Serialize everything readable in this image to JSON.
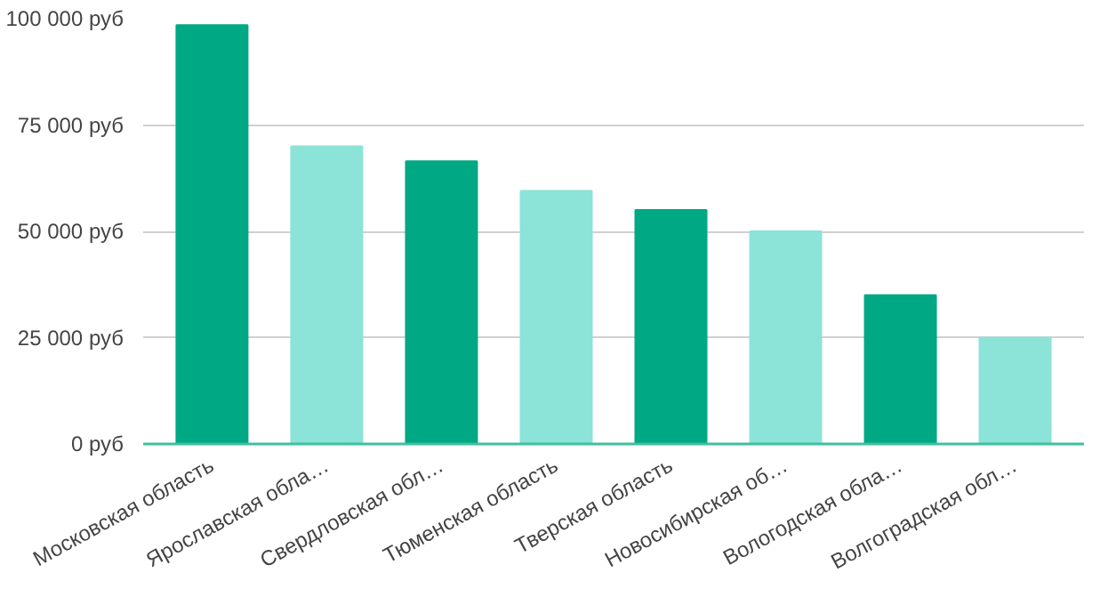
{
  "chart_data": {
    "type": "bar",
    "categories": [
      "Московская область",
      "Ярославская обла…",
      "Свердловская обл…",
      "Тюменская область",
      "Тверская область",
      "Новосибирская об…",
      "Вологодская обла…",
      "Волгоградская обл…"
    ],
    "values": [
      98500,
      70000,
      66500,
      59500,
      55000,
      50000,
      35000,
      25000
    ],
    "colors": [
      "#00a884",
      "#8ce3d8",
      "#00a884",
      "#8ce3d8",
      "#00a884",
      "#8ce3d8",
      "#00a884",
      "#8ce3d8"
    ],
    "ylim": [
      0,
      100000
    ],
    "yticks": [
      {
        "value": 0,
        "label": "0 руб"
      },
      {
        "value": 25000,
        "label": "25 000 руб"
      },
      {
        "value": 50000,
        "label": "50 000 руб"
      },
      {
        "value": 75000,
        "label": "75 000 руб"
      },
      {
        "value": 100000,
        "label": "100 000 руб"
      }
    ],
    "grid": "y"
  }
}
